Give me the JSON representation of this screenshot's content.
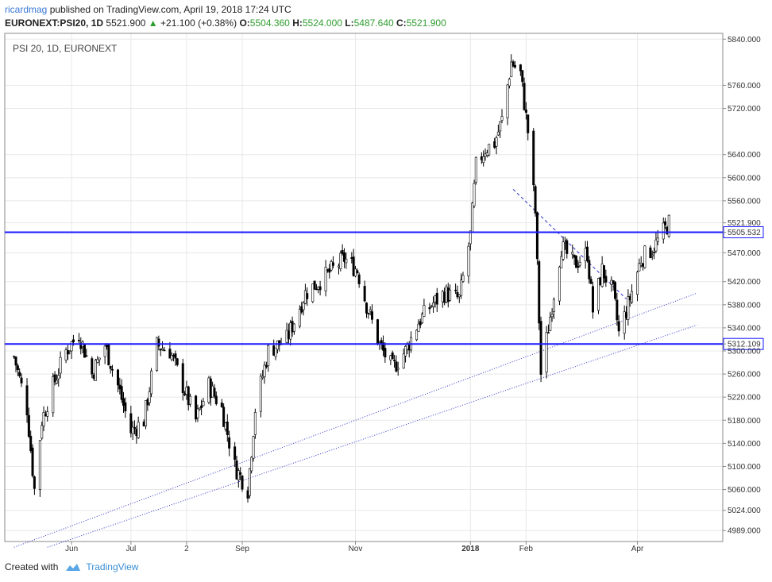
{
  "header": {
    "author": "ricardmag",
    "published": "published on TradingView.com, April 19, 2018 17:24 UTC",
    "symbol": "EURONEXT:PSI20, 1D",
    "last": "5521.900",
    "change": "+21.100 (+0.38%)",
    "o_label": "O:",
    "o_value": "5504.360",
    "h_label": "H:",
    "h_value": "5524.000",
    "l_label": "L:",
    "l_value": "5487.640",
    "c_label": "C:",
    "c_value": "5521.900"
  },
  "footer": {
    "created_with": "Created with",
    "brand": "TradingView",
    "logo_icon": "tradingview-cloud-icon"
  },
  "colors": {
    "accent": "#3a78d6",
    "level_line": "#1a1aff",
    "trend_line": "#3333cc",
    "candle": "#000000",
    "up": "#2e9e2e"
  },
  "chart_data": {
    "type": "candlestick",
    "title": "PSI 20, 1D, EURONEXT",
    "ylim": [
      4970,
      5850
    ],
    "y_ticks": [
      "5840.000",
      "5760.000",
      "5720.000",
      "5640.000",
      "5600.000",
      "5560.000",
      "5521.900",
      "5505.532",
      "5470.000",
      "5420.000",
      "5380.000",
      "5340.000",
      "5312.109",
      "5300.000",
      "5260.000",
      "5220.000",
      "5180.000",
      "5140.000",
      "5100.000",
      "5060.000",
      "5024.000",
      "4989.000"
    ],
    "x_ticks": [
      "Jun",
      "Jul",
      "2",
      "Sep",
      "Nov",
      "2018",
      "Feb",
      "Apr"
    ],
    "horizontal_levels": [
      5505.532,
      5312.109
    ],
    "current_price_label": "5521.900",
    "trendlines": [
      {
        "from": [
          "2017-05-01",
          4960
        ],
        "to": [
          "2018-05-04",
          5400
        ],
        "style": "dotted"
      },
      {
        "from": [
          "2017-05-19",
          4960
        ],
        "to": [
          "2018-05-04",
          5345
        ],
        "style": "dotted"
      },
      {
        "from": [
          "2018-01-25",
          5580
        ],
        "to": [
          "2018-03-27",
          5390
        ],
        "style": "dashed"
      }
    ],
    "anchors": [
      [
        "2017-05-01",
        5290
      ],
      [
        "2017-05-08",
        5200
      ],
      [
        "2017-05-12",
        5060
      ],
      [
        "2017-05-16",
        5180
      ],
      [
        "2017-05-22",
        5240
      ],
      [
        "2017-05-29",
        5300
      ],
      [
        "2017-06-05",
        5330
      ],
      [
        "2017-06-12",
        5260
      ],
      [
        "2017-06-19",
        5310
      ],
      [
        "2017-06-26",
        5240
      ],
      [
        "2017-07-03",
        5160
      ],
      [
        "2017-07-10",
        5180
      ],
      [
        "2017-07-17",
        5310
      ],
      [
        "2017-07-24",
        5300
      ],
      [
        "2017-07-31",
        5240
      ],
      [
        "2017-08-07",
        5180
      ],
      [
        "2017-08-14",
        5240
      ],
      [
        "2017-08-21",
        5200
      ],
      [
        "2017-08-28",
        5100
      ],
      [
        "2017-09-04",
        5060
      ],
      [
        "2017-09-08",
        5200
      ],
      [
        "2017-09-15",
        5300
      ],
      [
        "2017-09-25",
        5320
      ],
      [
        "2017-10-05",
        5400
      ],
      [
        "2017-10-16",
        5430
      ],
      [
        "2017-10-26",
        5460
      ],
      [
        "2017-11-02",
        5440
      ],
      [
        "2017-11-07",
        5380
      ],
      [
        "2017-11-14",
        5310
      ],
      [
        "2017-11-21",
        5270
      ],
      [
        "2017-11-28",
        5300
      ],
      [
        "2017-12-05",
        5350
      ],
      [
        "2017-12-12",
        5380
      ],
      [
        "2017-12-19",
        5400
      ],
      [
        "2017-12-27",
        5390
      ],
      [
        "2018-01-02",
        5500
      ],
      [
        "2018-01-05",
        5620
      ],
      [
        "2018-01-10",
        5650
      ],
      [
        "2018-01-15",
        5660
      ],
      [
        "2018-01-19",
        5700
      ],
      [
        "2018-01-24",
        5800
      ],
      [
        "2018-01-29",
        5780
      ],
      [
        "2018-02-02",
        5680
      ],
      [
        "2018-02-06",
        5540
      ],
      [
        "2018-02-09",
        5260
      ],
      [
        "2018-02-13",
        5340
      ],
      [
        "2018-02-20",
        5480
      ],
      [
        "2018-02-27",
        5450
      ],
      [
        "2018-03-06",
        5470
      ],
      [
        "2018-03-09",
        5370
      ],
      [
        "2018-03-14",
        5440
      ],
      [
        "2018-03-20",
        5400
      ],
      [
        "2018-03-23",
        5330
      ],
      [
        "2018-03-28",
        5380
      ],
      [
        "2018-04-04",
        5460
      ],
      [
        "2018-04-11",
        5480
      ],
      [
        "2018-04-19",
        5521.9
      ]
    ]
  }
}
